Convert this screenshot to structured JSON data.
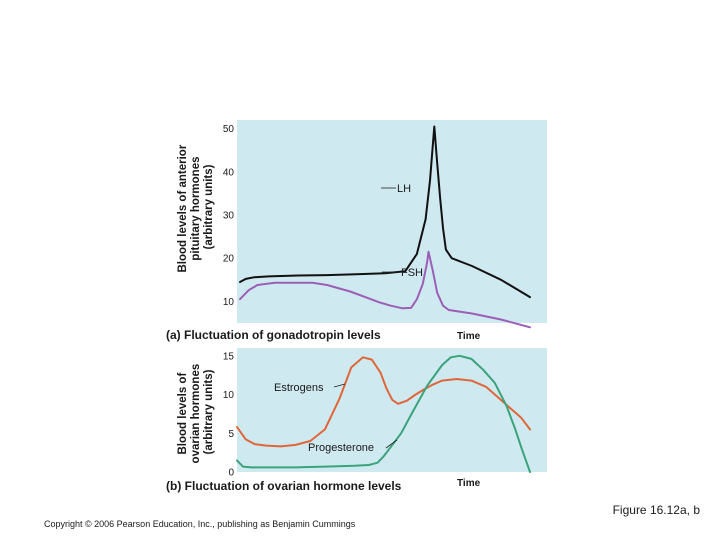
{
  "caption": "Figure 16.12a, b",
  "copyright": "Copyright © 2006 Pearson Education, Inc., publishing as Benjamin Cummings",
  "colors": {
    "plot_background": "#cfe9f1",
    "lh": "#111111",
    "fsh": "#9b5fb5",
    "estrogen": "#e0663a",
    "progesterone": "#3aa37a"
  },
  "chart_data": [
    {
      "type": "line",
      "title": "(a) Fluctuation of gonadotropin levels",
      "xlabel": "Time",
      "ylabel": [
        "Blood levels of anterior",
        "pituitary hormones",
        "(arbitrary units)"
      ],
      "xlim": [
        0,
        100
      ],
      "ylim": [
        5,
        52
      ],
      "yticks": [
        "10",
        "20",
        "30",
        "40",
        "50"
      ],
      "grid": false,
      "series": [
        {
          "name": "LH",
          "x": [
            0,
            2,
            5,
            10,
            20,
            30,
            40,
            50,
            57,
            61,
            64,
            65.5,
            67,
            68,
            69,
            70,
            71,
            73,
            80,
            90,
            100
          ],
          "y": [
            14.5,
            15.2,
            15.6,
            15.8,
            16,
            16.1,
            16.3,
            16.5,
            17,
            21,
            29,
            38,
            50.5,
            42,
            34,
            27,
            22,
            20,
            18.2,
            15,
            11
          ]
        },
        {
          "name": "FSH",
          "x": [
            0,
            3,
            6,
            12,
            20,
            25,
            30,
            38,
            44,
            48,
            52,
            56,
            59,
            61,
            63,
            64.5,
            65,
            66.5,
            68,
            70,
            72,
            80,
            90,
            100
          ],
          "y": [
            10.5,
            12.6,
            13.8,
            14.3,
            14.3,
            14.3,
            13.8,
            12.3,
            10.8,
            9.8,
            9,
            8.4,
            8.5,
            10.5,
            14,
            19,
            21.5,
            17,
            12,
            9,
            8,
            7.2,
            5.8,
            4
          ]
        }
      ],
      "annotations": [
        "LH",
        "FSH"
      ]
    },
    {
      "type": "line",
      "title": "(b) Fluctuation of ovarian hormone levels",
      "xlabel": "Time",
      "ylabel": [
        "Blood levels of",
        "ovarian hormones",
        "(arbitrary units)"
      ],
      "xlim": [
        0,
        100
      ],
      "ylim": [
        0,
        16
      ],
      "yticks": [
        "0",
        "5",
        "10",
        "15"
      ],
      "grid": false,
      "series": [
        {
          "name": "Estrogens",
          "x": [
            0,
            3,
            6,
            10,
            15,
            20,
            25,
            30,
            35,
            39,
            43,
            46,
            49,
            51,
            53,
            55,
            58,
            61,
            64,
            67,
            70,
            75,
            80,
            85,
            88,
            91,
            94,
            97,
            100
          ],
          "y": [
            5.8,
            4.2,
            3.6,
            3.4,
            3.3,
            3.5,
            4.0,
            5.5,
            9.5,
            13.5,
            14.8,
            14.5,
            12.8,
            10.8,
            9.3,
            8.8,
            9.2,
            10,
            10.7,
            11.3,
            11.8,
            12,
            11.8,
            11,
            10,
            9,
            8,
            7,
            5.5
          ]
        },
        {
          "name": "Progesterone",
          "x": [
            0,
            2,
            5,
            10,
            20,
            30,
            40,
            45,
            48,
            50,
            52,
            56,
            60,
            65,
            70,
            73,
            76,
            80,
            84,
            88,
            92,
            95,
            97,
            100
          ],
          "y": [
            1.5,
            0.7,
            0.6,
            0.6,
            0.6,
            0.7,
            0.8,
            0.9,
            1.2,
            2.0,
            3.0,
            5.0,
            7.8,
            11.2,
            13.8,
            14.8,
            15.0,
            14.6,
            13.2,
            11.5,
            8.5,
            5.5,
            3.2,
            0
          ]
        }
      ],
      "annotations": [
        "Estrogens",
        "Progesterone"
      ]
    }
  ]
}
